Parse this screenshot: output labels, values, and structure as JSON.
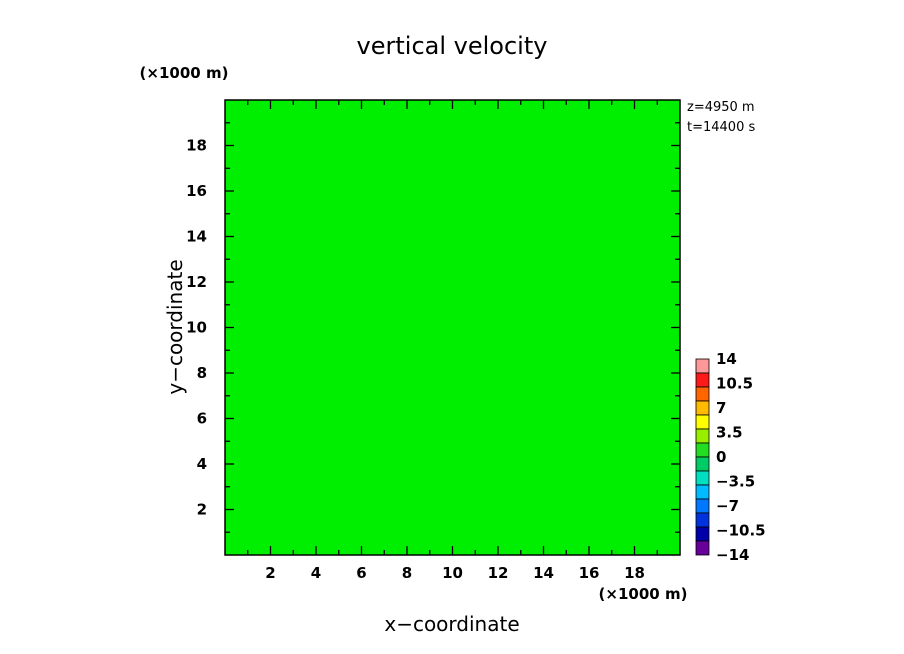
{
  "chart_data": {
    "type": "heatmap",
    "title": "vertical velocity",
    "xlabel": "x−coordinate",
    "ylabel": "y−coordinate",
    "x_unit": "(×1000 m)",
    "y_unit": "(×1000 m)",
    "xlim": [
      0,
      20
    ],
    "ylim": [
      0,
      20
    ],
    "xticks": [
      2,
      4,
      6,
      8,
      10,
      12,
      14,
      16,
      18
    ],
    "yticks": [
      2,
      4,
      6,
      8,
      10,
      12,
      14,
      16,
      18
    ],
    "annotations": [
      "z=4950  m",
      "t=14400  s"
    ],
    "field_value": 0,
    "field_color": "#00ee00",
    "colorbar": {
      "labels": [
        "14",
        "10.5",
        "7",
        "3.5",
        "0",
        "−3.5",
        "−7",
        "−10.5",
        "−14"
      ],
      "label_values": [
        14,
        10.5,
        7,
        3.5,
        0,
        -3.5,
        -7,
        -10.5,
        -14
      ],
      "colors": [
        "#ff9999",
        "#ff1a1a",
        "#ff6600",
        "#ffbb00",
        "#ffff00",
        "#99ee00",
        "#22dd22",
        "#00cc66",
        "#00e0c0",
        "#00bbff",
        "#0077ff",
        "#0033dd",
        "#0000aa",
        "#660099"
      ],
      "min": -14,
      "max": 14
    }
  }
}
